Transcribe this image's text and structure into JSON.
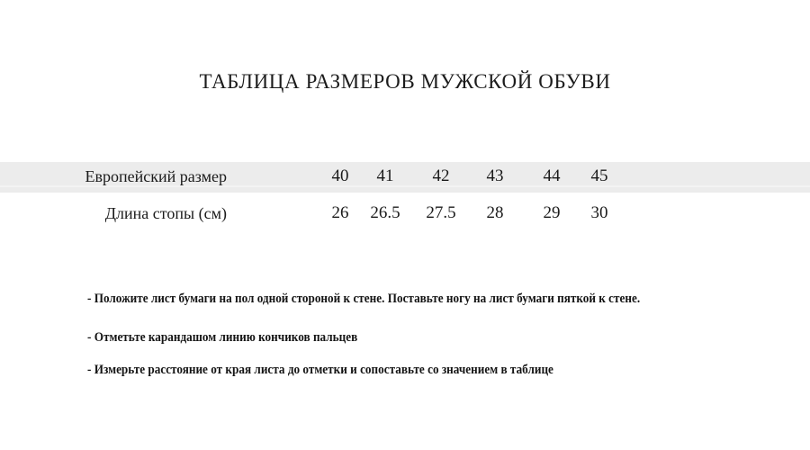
{
  "title": "ТАБЛИЦА РАЗМЕРОВ МУЖСКОЙ ОБУВИ",
  "size_table": {
    "rows": [
      {
        "label": "Европейский размер",
        "values": [
          "40",
          "41",
          "42",
          "43",
          "44",
          "45"
        ]
      },
      {
        "label": "Длина стопы (см)",
        "values": [
          "26",
          "26.5",
          "27.5",
          "28",
          "29",
          "30"
        ]
      }
    ]
  },
  "instructions": [
    "- Положите лист бумаги на пол одной стороной к стене. Поставьте ногу на лист бумаги пяткой к стене.",
    "- Отметьте карандашом линию кончиков пальцев",
    "- Измерьте расстояние от края листа до отметки и сопоставьте со значением в таблице"
  ],
  "colors": {
    "header_row_bg": "#ececec",
    "text": "#1b1b1b"
  }
}
